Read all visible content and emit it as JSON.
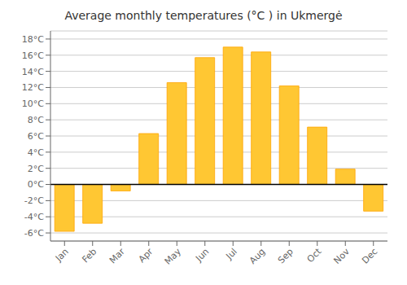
{
  "chart_data": {
    "type": "bar",
    "title": "Average monthly temperatures (°C ) in Ukmergė",
    "categories": [
      "Jan",
      "Feb",
      "Mar",
      "Apr",
      "May",
      "Jun",
      "Jul",
      "Aug",
      "Sep",
      "Oct",
      "Nov",
      "Dec"
    ],
    "values": [
      -5.8,
      -4.8,
      -0.8,
      6.3,
      12.6,
      15.7,
      17.0,
      16.4,
      12.2,
      7.1,
      1.9,
      -3.3
    ],
    "color": "#FFC733",
    "ylim": [
      -7,
      19
    ],
    "yticks": [
      {
        "value": -6,
        "label": "-6°C"
      },
      {
        "value": -4,
        "label": "-4°C"
      },
      {
        "value": -2,
        "label": "-2°C"
      },
      {
        "value": 0,
        "label": "0°C"
      },
      {
        "value": 2,
        "label": "2°C"
      },
      {
        "value": 4,
        "label": "4°C"
      },
      {
        "value": 6,
        "label": "6°C"
      },
      {
        "value": 8,
        "label": "8°C"
      },
      {
        "value": 10,
        "label": "10°C"
      },
      {
        "value": 12,
        "label": "12°C"
      },
      {
        "value": 14,
        "label": "14°C"
      },
      {
        "value": 16,
        "label": "16°C"
      },
      {
        "value": 18,
        "label": "18°C"
      }
    ],
    "grid": true
  }
}
